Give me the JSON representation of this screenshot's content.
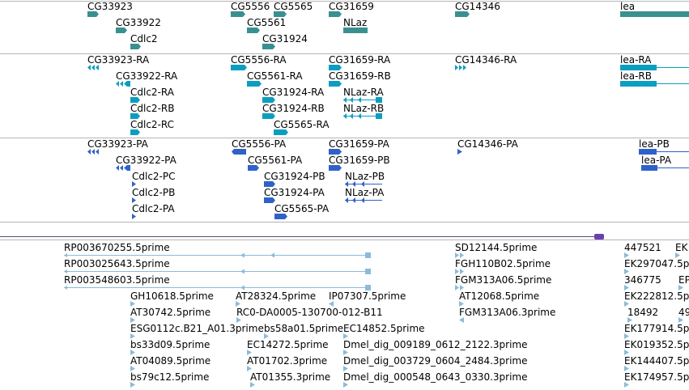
{
  "colors": {
    "gene": "#3a9090",
    "cdna": "#0c9ec0",
    "protein": "#2f62c8",
    "est": "#8cbbd8",
    "separator": "#b5b5b5",
    "scale": "#6b3fb0"
  },
  "tracks": {
    "genes": [
      "CG33923",
      "CG33922",
      "Cdlc2",
      "CG5556",
      "CG5565",
      "CG5561",
      "CG31924",
      "CG31659",
      "NLaz",
      "CG14346",
      "lea"
    ],
    "transcripts": [
      "CG33923-RA",
      "CG33922-RA",
      "Cdlc2-RA",
      "Cdlc2-RB",
      "Cdlc2-RC",
      "CG5556-RA",
      "CG5561-RA",
      "CG31924-RA",
      "CG31924-RB",
      "CG5565-RA",
      "CG31659-RA",
      "CG31659-RB",
      "NLaz-RA",
      "NLaz-RB",
      "CG14346-RA",
      "lea-RA",
      "lea-RB"
    ],
    "proteins": [
      "CG33923-PA",
      "CG33922-PA",
      "Cdlc2-PC",
      "Cdlc2-PB",
      "Cdlc2-PA",
      "CG5556-PA",
      "CG5561-PA",
      "CG31924-PB",
      "CG31924-PA",
      "CG5565-PA",
      "CG31659-PA",
      "CG31659-PB",
      "NLaz-PB",
      "NLaz-PA",
      "CG14346-PA",
      "lea-PB",
      "lea-PA"
    ],
    "ests": [
      "RP003670255.5prime",
      "RP003025643.5prime",
      "RP003548603.5prime",
      "GH10618.5prime",
      "AT28324.5prime",
      "IP07307.5prime",
      "AT30742.5prime",
      "RC0-DA0005-130700-012-B11",
      "ESG0112c.B21_A01.3prime",
      "bs58a01.5prime",
      "EC14852.5prime",
      "bs33d09.5prime",
      "EC14272.5prime",
      "Dmel_dig_009189_0612_2122.3prime",
      "AT04089.5prime",
      "AT01702.3prime",
      "Dmel_dig_003729_0604_2484.3prime",
      "bs79c12.5prime",
      "AT01355.3prime",
      "Dmel_dig_000548_0643_0330.3prime",
      "SD12144.5prime",
      "FGH110B02.5prime",
      "FGM313A06.5prime",
      "AT12068.5prime",
      "FGM313A06.3prime",
      "447521",
      "EK",
      "EK297047.5p",
      "346775",
      "EP",
      "EK222812.5p",
      "18492",
      "49",
      "EK177914.5p",
      "EK019352.5p",
      "EK144407.5p",
      "EK174957.5p"
    ]
  }
}
